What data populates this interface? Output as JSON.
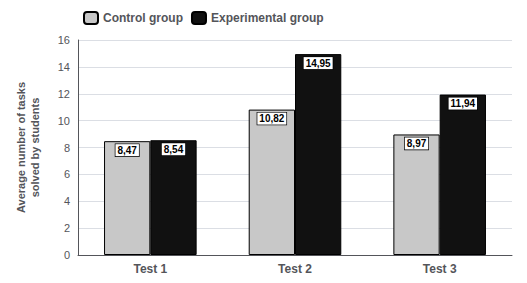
{
  "chart_data": {
    "type": "bar",
    "categories": [
      "Test 1",
      "Test 2",
      "Test 3"
    ],
    "series": [
      {
        "name": "Control group",
        "color": "#c8c8c8",
        "values": [
          8.47,
          10.82,
          8.97
        ],
        "value_labels": [
          "8,47",
          "10,82",
          "8,97"
        ]
      },
      {
        "name": "Experimental group",
        "color": "#111111",
        "values": [
          8.54,
          14.95,
          11.94
        ],
        "value_labels": [
          "8,54",
          "14,95",
          "11,94"
        ]
      }
    ],
    "ylabel": "Average number of tasks\nsolved by students",
    "ylim": [
      0,
      16
    ],
    "yticks": [
      0,
      2,
      4,
      6,
      8,
      10,
      12,
      14,
      16
    ],
    "grid": true,
    "legend": "upper left",
    "data_labels": true
  }
}
